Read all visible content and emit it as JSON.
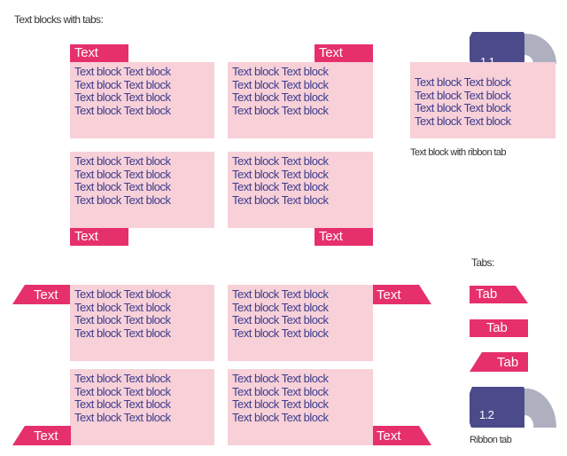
{
  "title": "Text blocks with tabs:",
  "block_text": "Text block Text block",
  "tab_text": "Text",
  "ribbon_block_caption": "Text block with ribbon tab",
  "tabs_caption": "Tabs:",
  "tab_samples": [
    "Tab",
    "Tab",
    "Tab"
  ],
  "ribbon_tab_caption": "Ribbon tab",
  "ribbon_labels": [
    "1.1",
    "1.2"
  ],
  "colors": {
    "block": "#f7d0d8",
    "tab": "#e6306b",
    "text": "#3b3c8c",
    "ribbon_dark": "#4b4a8a",
    "ribbon_light": "#aeb0c0"
  }
}
